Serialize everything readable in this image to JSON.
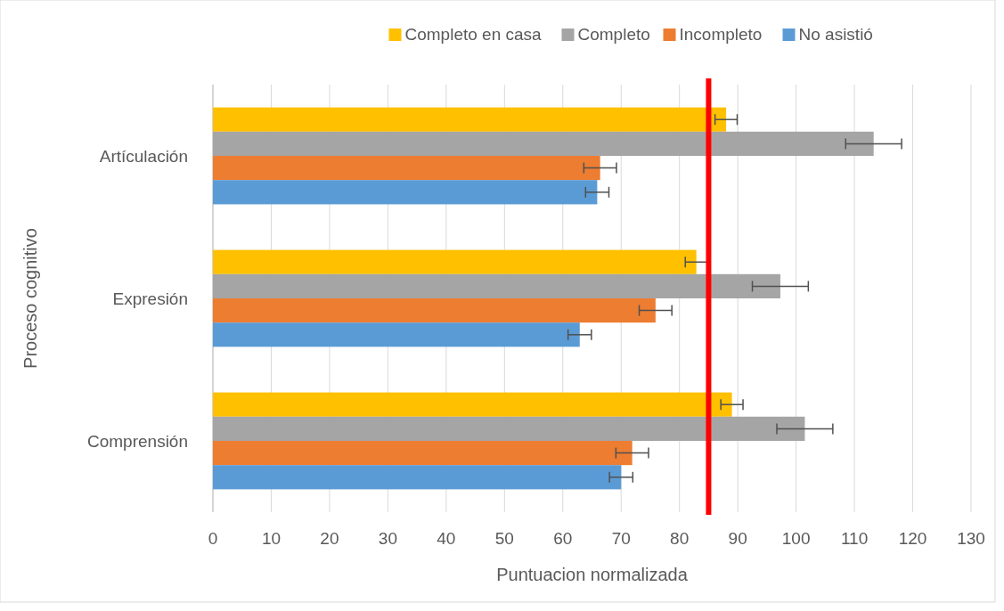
{
  "chart_data": {
    "type": "bar",
    "orientation": "horizontal",
    "xlabel": "Puntuacion normalizada",
    "ylabel": "Proceso cognitivo",
    "categories": [
      "Artículación",
      "Expresión",
      "Comprensión"
    ],
    "series": [
      {
        "name": "Completo en casa",
        "color": "#ffc000",
        "values": [
          88,
          82.9,
          89
        ],
        "errors": [
          1.9,
          1.9,
          1.9
        ]
      },
      {
        "name": "Completo",
        "color": "#a5a5a5",
        "values": [
          113.3,
          97.3,
          101.5
        ],
        "errors": [
          4.8,
          4.8,
          4.8
        ]
      },
      {
        "name": "Incompleto",
        "color": "#ed7d31",
        "values": [
          66.4,
          75.9,
          71.9
        ],
        "errors": [
          2.8,
          2.8,
          2.8
        ]
      },
      {
        "name": "No asistió",
        "color": "#5b9bd5",
        "values": [
          65.9,
          62.9,
          70
        ],
        "errors": [
          2,
          2,
          2
        ]
      }
    ],
    "xlim": [
      0,
      130
    ],
    "xticks": [
      0,
      10,
      20,
      30,
      40,
      50,
      60,
      70,
      80,
      90,
      100,
      110,
      120,
      130
    ],
    "grid": "x",
    "legend": "top",
    "ref_lines": [
      {
        "axis": "x",
        "value": 85,
        "color": "#ff0000"
      }
    ]
  }
}
